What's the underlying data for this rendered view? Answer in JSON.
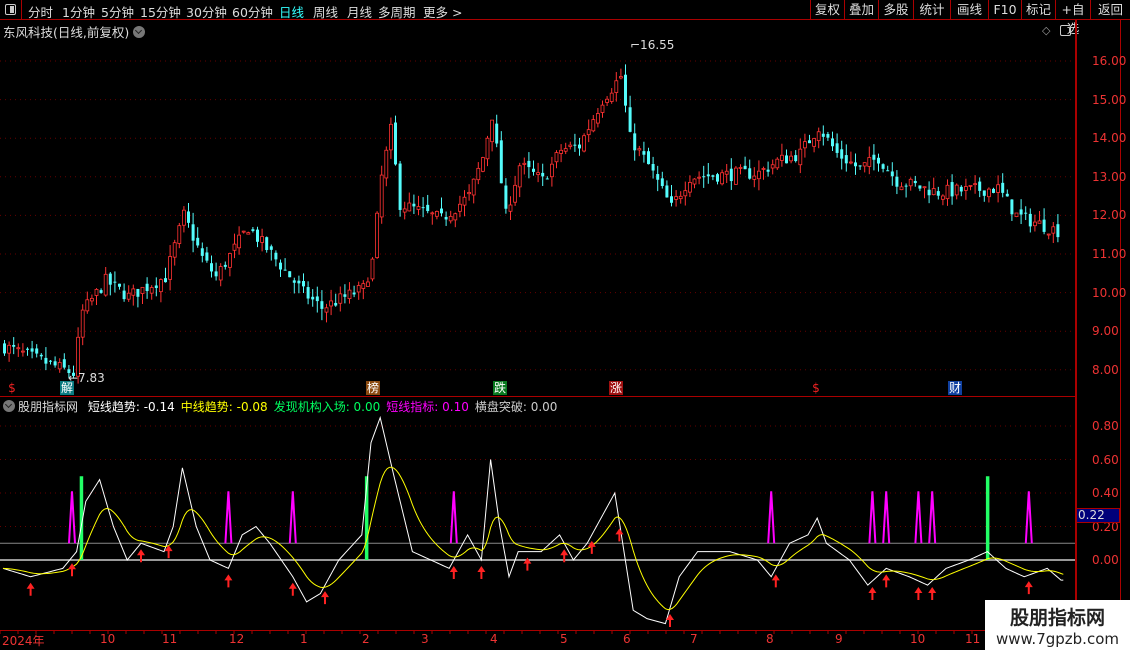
{
  "toolbar": {
    "periods": [
      "分时",
      "1分钟",
      "5分钟",
      "15分钟",
      "30分钟",
      "60分钟",
      "日线",
      "周线",
      "月线",
      "多周期",
      "更多 >"
    ],
    "active_period": "日线",
    "buttons": [
      "复权",
      "叠加",
      "多股",
      "统计",
      "画线",
      "F10",
      "标记",
      "+自选",
      "返回"
    ]
  },
  "stock": {
    "title": "东风科技(日线,前复权)",
    "high_label": "16.55",
    "low_label": "7.83"
  },
  "price_axis": [
    "16.00",
    "15.00",
    "14.00",
    "13.00",
    "12.00",
    "11.00",
    "10.00",
    "9.00",
    "8.00"
  ],
  "price_path": [
    [
      0,
      8.6
    ],
    [
      13,
      8.0
    ],
    [
      15,
      7.9
    ],
    [
      17,
      9.5
    ],
    [
      22,
      10.3
    ],
    [
      27,
      9.9
    ],
    [
      35,
      10.4
    ],
    [
      39,
      12.0
    ],
    [
      43,
      10.9
    ],
    [
      46,
      10.4
    ],
    [
      53,
      11.7
    ],
    [
      58,
      11.0
    ],
    [
      65,
      10.0
    ],
    [
      69,
      9.6
    ],
    [
      78,
      10.1
    ],
    [
      80,
      10.8
    ],
    [
      82,
      13.0
    ],
    [
      84,
      14.2
    ],
    [
      86,
      12.3
    ],
    [
      95,
      11.9
    ],
    [
      101,
      12.5
    ],
    [
      104,
      13.5
    ],
    [
      106,
      14.6
    ],
    [
      109,
      12.0
    ],
    [
      112,
      13.3
    ],
    [
      117,
      12.9
    ],
    [
      121,
      13.7
    ],
    [
      125,
      13.8
    ],
    [
      130,
      15.0
    ],
    [
      134,
      15.6
    ],
    [
      136,
      14.0
    ],
    [
      140,
      13.3
    ],
    [
      145,
      12.2
    ],
    [
      149,
      13.0
    ],
    [
      164,
      13.1
    ],
    [
      168,
      13.4
    ],
    [
      173,
      13.6
    ],
    [
      177,
      14.3
    ],
    [
      181,
      13.6
    ],
    [
      186,
      13.2
    ],
    [
      190,
      13.5
    ],
    [
      194,
      12.9
    ],
    [
      203,
      12.6
    ],
    [
      216,
      12.7
    ],
    [
      220,
      12.0
    ],
    [
      229,
      11.6
    ]
  ],
  "signals": [
    {
      "text": "$",
      "color": "#e22",
      "bg": ""
    },
    {
      "text": "解",
      "color": "#fff",
      "bg": "#0a7b80"
    },
    {
      "text": "榜",
      "color": "#fff",
      "bg": "#8b4a10"
    },
    {
      "text": "跌",
      "color": "#fff",
      "bg": "#0a7a20"
    },
    {
      "text": "涨",
      "color": "#fff",
      "bg": "#a01010"
    },
    {
      "text": "$",
      "color": "#e22",
      "bg": ""
    },
    {
      "text": "财",
      "color": "#fff",
      "bg": "#1040a0"
    }
  ],
  "indicator": {
    "name": "股朋指标网",
    "values": [
      {
        "label": "短线趋势: -0.14",
        "color": "#ffffff"
      },
      {
        "label": "中线趋势: -0.08",
        "color": "#ffff00"
      },
      {
        "label": "发现机构入场: 0.00",
        "color": "#00ff60"
      },
      {
        "label": "短线指标: 0.10",
        "color": "#ff00ff"
      },
      {
        "label": "横盘突破: 0.00",
        "color": "#cccccc"
      }
    ],
    "axis": [
      "0.80",
      "0.60",
      "0.40",
      "0.20",
      "0.00"
    ],
    "current_value": "0.22",
    "white_path": [
      [
        0,
        -0.05
      ],
      [
        6,
        -0.1
      ],
      [
        13,
        -0.05
      ],
      [
        16,
        0.05
      ],
      [
        18,
        0.35
      ],
      [
        21,
        0.48
      ],
      [
        24,
        0.2
      ],
      [
        27,
        0
      ],
      [
        30,
        0.1
      ],
      [
        35,
        0.05
      ],
      [
        37,
        0.2
      ],
      [
        39,
        0.55
      ],
      [
        42,
        0.2
      ],
      [
        45,
        0
      ],
      [
        49,
        -0.05
      ],
      [
        52,
        0.15
      ],
      [
        55,
        0.2
      ],
      [
        58,
        0.1
      ],
      [
        63,
        -0.1
      ],
      [
        66,
        -0.25
      ],
      [
        69,
        -0.2
      ],
      [
        73,
        0
      ],
      [
        78,
        0.15
      ],
      [
        80,
        0.7
      ],
      [
        82,
        0.85
      ],
      [
        85,
        0.5
      ],
      [
        89,
        0.05
      ],
      [
        93,
        0
      ],
      [
        97,
        -0.05
      ],
      [
        101,
        0.15
      ],
      [
        104,
        0
      ],
      [
        106,
        0.6
      ],
      [
        108,
        0.2
      ],
      [
        110,
        -0.1
      ],
      [
        112,
        0.05
      ],
      [
        117,
        0.05
      ],
      [
        121,
        0.15
      ],
      [
        124,
        0
      ],
      [
        127,
        0.1
      ],
      [
        131,
        0.3
      ],
      [
        133,
        0.4
      ],
      [
        135,
        0.05
      ],
      [
        137,
        -0.3
      ],
      [
        140,
        -0.35
      ],
      [
        144,
        -0.38
      ],
      [
        147,
        -0.1
      ],
      [
        151,
        0.05
      ],
      [
        158,
        0.05
      ],
      [
        164,
        0
      ],
      [
        167,
        -0.1
      ],
      [
        171,
        0.1
      ],
      [
        175,
        0.15
      ],
      [
        177,
        0.25
      ],
      [
        179,
        0.1
      ],
      [
        184,
        0
      ],
      [
        188,
        -0.15
      ],
      [
        192,
        -0.05
      ],
      [
        197,
        -0.1
      ],
      [
        201,
        -0.15
      ],
      [
        205,
        -0.05
      ],
      [
        210,
        0
      ],
      [
        214,
        0.05
      ],
      [
        218,
        -0.05
      ],
      [
        222,
        -0.1
      ],
      [
        227,
        -0.05
      ],
      [
        230,
        -0.12
      ]
    ],
    "magenta_spikes": [
      15,
      49,
      63,
      98,
      167,
      189,
      192,
      199,
      202,
      223
    ],
    "green_spikes": [
      17,
      79,
      214
    ],
    "arrows": [
      6,
      15,
      30,
      36,
      49,
      63,
      70,
      98,
      104,
      114,
      122,
      128,
      134,
      145,
      168,
      189,
      192,
      199,
      202,
      223
    ]
  },
  "time_axis": [
    "2024年",
    "10",
    "11",
    "12",
    "1",
    "2",
    "3",
    "4",
    "5",
    "6",
    "7",
    "8",
    "9",
    "10",
    "11"
  ],
  "watermark": {
    "name": "股朋指标网",
    "url": "www.7gpzb.com"
  },
  "colors": {
    "up": "#ff3232",
    "down": "#54fcfc",
    "axis": "#e33"
  }
}
